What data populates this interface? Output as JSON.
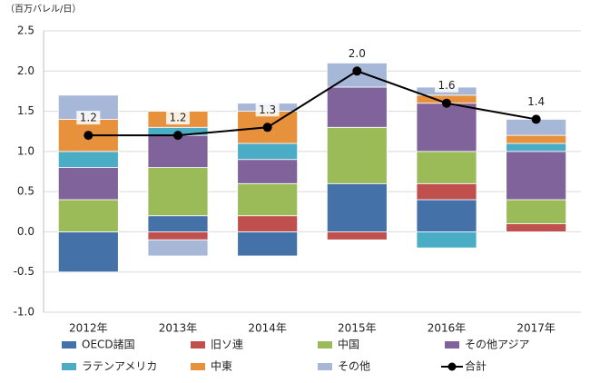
{
  "chart_data": {
    "type": "stacked-bar-line",
    "unit_label": "（百万バレル/日）",
    "categories": [
      "2012年",
      "2013年",
      "2014年",
      "2015年",
      "2016年",
      "2017年"
    ],
    "ylim": [
      -1,
      2.5
    ],
    "yticks": [
      2.5,
      {
        "value": 2,
        "label": "2.0"
      },
      1.5,
      {
        "value": 1,
        "label": "1.0"
      },
      0.5,
      {
        "value": 0,
        "label": "0.0"
      },
      -0.5,
      {
        "value": -1,
        "label": "-1.0"
      }
    ],
    "negative_tick_color": "#e00000",
    "grid": true,
    "series": [
      {
        "name": "OECD諸国",
        "color": "#4472a8",
        "values": [
          -0.5,
          0.2,
          -0.3,
          0.6,
          0.4,
          0
        ]
      },
      {
        "name": "旧ソ連",
        "color": "#c0504d",
        "values": [
          0,
          -0.1,
          0.2,
          -0.1,
          0.2,
          0.1
        ]
      },
      {
        "name": "中国",
        "color": "#9bbb59",
        "values": [
          0.4,
          0.6,
          0.4,
          0.7,
          0.4,
          0.3
        ]
      },
      {
        "name": "その他アジア",
        "color": "#80639a",
        "values": [
          0.4,
          0.4,
          0.3,
          0.5,
          0.6,
          0.6
        ]
      },
      {
        "name": "ラテンアメリカ",
        "color": "#4bacc6",
        "values": [
          0.2,
          0.1,
          0.2,
          0,
          -0.2,
          0.1
        ]
      },
      {
        "name": "中東",
        "color": "#e8913c",
        "values": [
          0.4,
          0.2,
          0.4,
          0,
          0.1,
          0.1
        ]
      },
      {
        "name": "その他",
        "color": "#a6b7d8",
        "values": [
          0.3,
          -0.2,
          0.1,
          0.3,
          0.1,
          0.2
        ]
      }
    ],
    "total": {
      "name": "合計",
      "color": "#000000",
      "values": [
        1.2,
        1.2,
        1.3,
        2,
        1.6,
        1.4
      ],
      "value_labels": [
        "1.2",
        "1.2",
        "1.3",
        "2.0",
        "1.6",
        "1.4"
      ]
    }
  }
}
